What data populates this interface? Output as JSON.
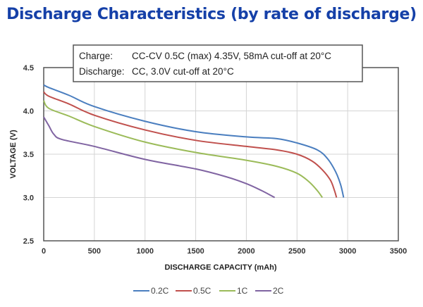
{
  "title": "Discharge Characteristics (by rate of discharge)",
  "conditions": {
    "charge_label": "Charge:",
    "charge_text": "CC-CV 0.5C (max) 4.35V, 58mA cut-off at 20°C",
    "discharge_label": "Discharge:",
    "discharge_text": "CC, 3.0V cut-off at 20°C"
  },
  "chart_data": {
    "type": "line",
    "title": "Discharge Characteristics (by rate of discharge)",
    "xlabel": "DISCHARGE CAPACITY (mAh)",
    "ylabel": "VOLTAGE (V)",
    "xlim": [
      0,
      3500
    ],
    "ylim": [
      2.5,
      4.5
    ],
    "xticks": [
      "0",
      "500",
      "1000",
      "1500",
      "2000",
      "2500",
      "3000",
      "3500"
    ],
    "yticks": [
      "2.5",
      "3.0",
      "3.5",
      "4.0",
      "4.5"
    ],
    "grid": true,
    "legend_position": "bottom",
    "series": [
      {
        "name": "0.2C",
        "color": "#4a7ebf",
        "points": [
          [
            0,
            4.3
          ],
          [
            50,
            4.27
          ],
          [
            250,
            4.18
          ],
          [
            500,
            4.05
          ],
          [
            1000,
            3.88
          ],
          [
            1500,
            3.76
          ],
          [
            2000,
            3.7
          ],
          [
            2300,
            3.68
          ],
          [
            2500,
            3.63
          ],
          [
            2700,
            3.55
          ],
          [
            2800,
            3.45
          ],
          [
            2880,
            3.3
          ],
          [
            2930,
            3.15
          ],
          [
            2960,
            3.0
          ]
        ]
      },
      {
        "name": "0.5C",
        "color": "#c0504d",
        "points": [
          [
            0,
            4.22
          ],
          [
            50,
            4.17
          ],
          [
            250,
            4.08
          ],
          [
            500,
            3.95
          ],
          [
            1000,
            3.78
          ],
          [
            1500,
            3.66
          ],
          [
            2000,
            3.59
          ],
          [
            2300,
            3.55
          ],
          [
            2500,
            3.5
          ],
          [
            2650,
            3.42
          ],
          [
            2750,
            3.32
          ],
          [
            2830,
            3.2
          ],
          [
            2870,
            3.08
          ],
          [
            2890,
            3.0
          ]
        ]
      },
      {
        "name": "1C",
        "color": "#9bbb59",
        "points": [
          [
            0,
            4.12
          ],
          [
            50,
            4.03
          ],
          [
            250,
            3.94
          ],
          [
            500,
            3.82
          ],
          [
            1000,
            3.64
          ],
          [
            1500,
            3.52
          ],
          [
            2000,
            3.43
          ],
          [
            2300,
            3.36
          ],
          [
            2500,
            3.28
          ],
          [
            2620,
            3.18
          ],
          [
            2700,
            3.08
          ],
          [
            2750,
            3.0
          ]
        ]
      },
      {
        "name": "2C",
        "color": "#8064a2",
        "points": [
          [
            0,
            3.93
          ],
          [
            50,
            3.83
          ],
          [
            100,
            3.73
          ],
          [
            180,
            3.67
          ],
          [
            500,
            3.59
          ],
          [
            1000,
            3.44
          ],
          [
            1500,
            3.33
          ],
          [
            1800,
            3.24
          ],
          [
            2000,
            3.16
          ],
          [
            2150,
            3.08
          ],
          [
            2280,
            3.0
          ]
        ]
      }
    ]
  }
}
